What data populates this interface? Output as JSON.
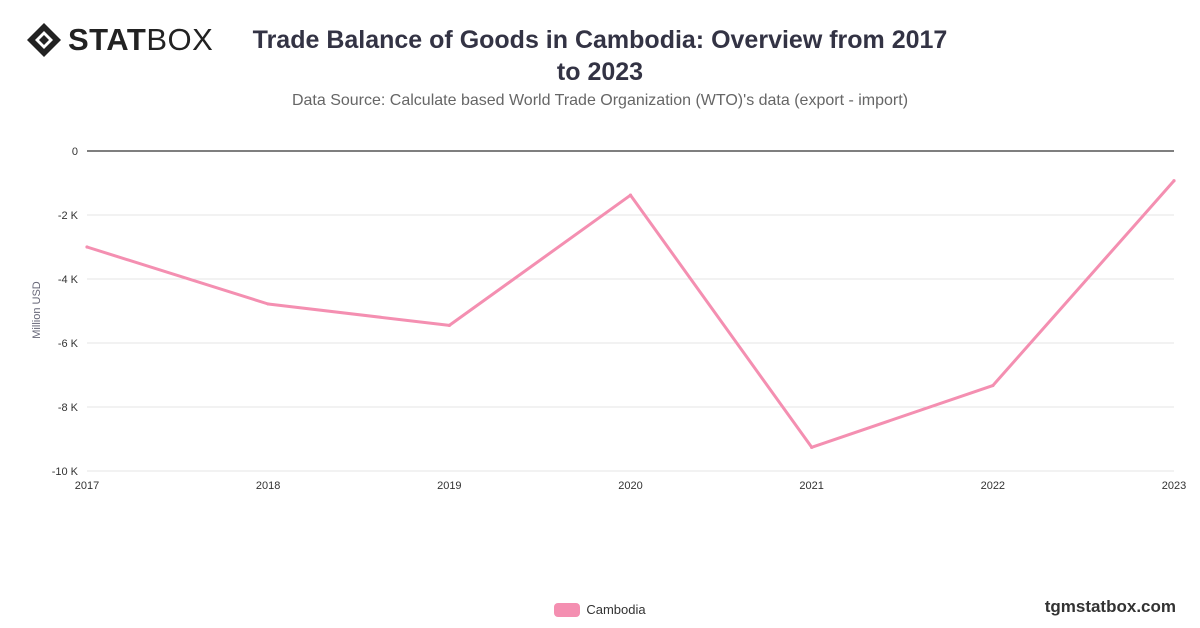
{
  "brand": {
    "name_bold": "STAT",
    "name_light": "BOX",
    "logo_icon": "diamond-logo-icon"
  },
  "watermark": "tgmstatbox.com",
  "colors": {
    "series": "#f48fb1",
    "zero_line": "#333333",
    "grid": "#e6e6e6",
    "text": "#333344"
  },
  "chart_data": {
    "type": "line",
    "title": "Trade Balance of Goods in Cambodia: Overview from 2017 to 2023",
    "subtitle": "Data Source: Calculate based World Trade Organization (WTO)'s data (export - import)",
    "xlabel": "",
    "ylabel": "Million USD",
    "x": [
      "2017",
      "2018",
      "2019",
      "2020",
      "2021",
      "2022",
      "2023"
    ],
    "ylim": [
      -10000,
      0
    ],
    "yticks": [
      0,
      -2000,
      -4000,
      -6000,
      -8000,
      -10000
    ],
    "ytick_labels": [
      "0",
      "-2 K",
      "-4 K",
      "-6 K",
      "-8 K",
      "-10 K"
    ],
    "grid": true,
    "legend_position": "bottom-center",
    "series": [
      {
        "name": "Cambodia",
        "color": "#f48fb1",
        "values": [
          -3000,
          -4780,
          -5450,
          -1380,
          -9260,
          -7330,
          -930
        ]
      }
    ]
  }
}
